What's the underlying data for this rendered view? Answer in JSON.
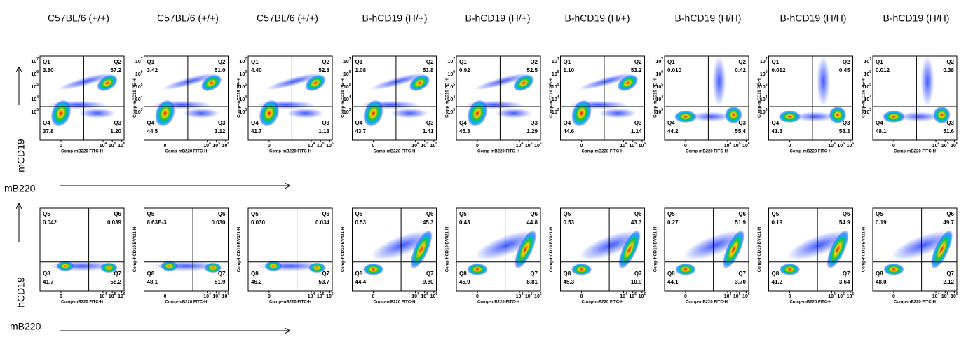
{
  "column_titles": [
    "C57BL/6 (+/+)",
    "C57BL/6 (+/+)",
    "C57BL/6 (+/+)",
    "B-hCD19 (H/+)",
    "B-hCD19 (H/+)",
    "B-hCD19 (H/+)",
    "B-hCD19 (H/H)",
    "B-hCD19 (H/H)",
    "B-hCD19 (H/H)"
  ],
  "tick_base": "10",
  "tick_zero": "0",
  "x_tick_exponents": [
    "4",
    "5",
    "6"
  ],
  "rows": [
    {
      "y_label": "mCD19",
      "x_label": "mB220",
      "x_axis_title": "Comp-mB220 FITC-H",
      "y_axis_title": "Comp-mCD19 PE-H",
      "y_tick_exponents": [
        "7",
        "6",
        "5",
        "4",
        "3"
      ],
      "quadrant_names": [
        "Q1",
        "Q2",
        "Q3",
        "Q4"
      ],
      "panels": [
        [
          "3.80",
          "57.2",
          "1.20",
          "37.8"
        ],
        [
          "3.42",
          "51.0",
          "1.12",
          "44.5"
        ],
        [
          "4.40",
          "52.8",
          "1.13",
          "41.7"
        ],
        [
          "1.08",
          "53.8",
          "1.41",
          "43.7"
        ],
        [
          "0.92",
          "52.5",
          "1.29",
          "45.3"
        ],
        [
          "1.10",
          "53.2",
          "1.14",
          "44.6"
        ],
        [
          "0.010",
          "0.42",
          "55.4",
          "44.2"
        ],
        [
          "0.012",
          "0.45",
          "58.3",
          "41.3"
        ],
        [
          "0.012",
          "0.38",
          "51.6",
          "48.1"
        ]
      ]
    },
    {
      "y_label": "hCD19",
      "x_label": "mB220",
      "x_axis_title": "Comp-mB220 FITC-H",
      "y_axis_title": "Comp-hCD19 BV421-H",
      "quadrant_names": [
        "Q5",
        "Q6",
        "Q7",
        "Q8"
      ],
      "panels": [
        [
          "0.042",
          "0.039",
          "58.2",
          "41.7"
        ],
        [
          "8.63E-3",
          "0.030",
          "51.9",
          "48.1"
        ],
        [
          "0.030",
          "0.034",
          "53.7",
          "46.2"
        ],
        [
          "0.53",
          "45.3",
          "9.80",
          "44.4"
        ],
        [
          "0.43",
          "44.8",
          "8.81",
          "45.9"
        ],
        [
          "0.53",
          "43.3",
          "10.9",
          "45.3"
        ],
        [
          "0.27",
          "51.9",
          "3.70",
          "44.1"
        ],
        [
          "0.19",
          "54.9",
          "3.64",
          "41.2"
        ],
        [
          "0.19",
          "49.7",
          "2.12",
          "48.0"
        ]
      ]
    }
  ]
}
